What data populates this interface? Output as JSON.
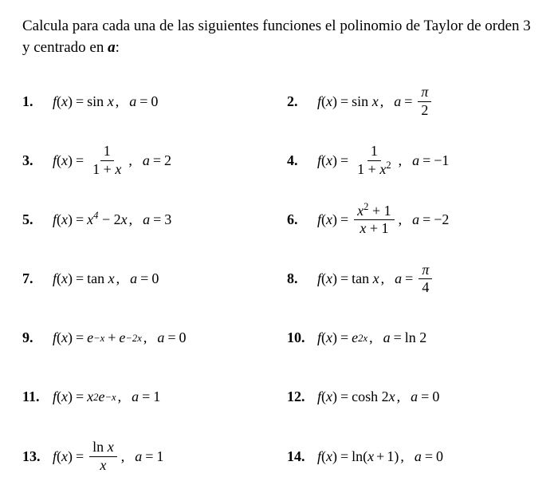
{
  "instruction": {
    "text_before": "Calcula para cada una de las siguientes funciones el polinomio de Taylor de orden 3 y centrado en ",
    "emph": "a",
    "text_after": ":"
  },
  "problems": [
    {
      "num": "1.",
      "func_html": "f(x) = sin x",
      "a_html": "a = 0",
      "func_type": "sin",
      "a_type": "plain",
      "a_val": "0"
    },
    {
      "num": "2.",
      "func_html": "f(x) = sin x",
      "a_html": "a = π/2",
      "func_type": "sin",
      "a_type": "frac",
      "a_top": "π",
      "a_bot": "2"
    },
    {
      "num": "3.",
      "func_type": "frac",
      "frac_top": "1",
      "frac_bot": "1 + x",
      "a_type": "plain",
      "a_val": "2"
    },
    {
      "num": "4.",
      "func_type": "frac",
      "frac_top": "1",
      "frac_bot": "1 + x²",
      "a_type": "plain",
      "a_val": "−1"
    },
    {
      "num": "5.",
      "func_type": "poly",
      "expr": "x⁴ − 2x",
      "a_type": "plain",
      "a_val": "3"
    },
    {
      "num": "6.",
      "func_type": "frac",
      "frac_top": "x² + 1",
      "frac_bot": "x + 1",
      "a_type": "plain",
      "a_val": "−2"
    },
    {
      "num": "7.",
      "func_type": "tan",
      "a_type": "plain",
      "a_val": "0"
    },
    {
      "num": "8.",
      "func_type": "tan",
      "a_type": "frac",
      "a_top": "π",
      "a_bot": "4"
    },
    {
      "num": "9.",
      "func_type": "expsum",
      "a_type": "plain",
      "a_val": "0"
    },
    {
      "num": "10.",
      "func_type": "exp2x",
      "a_type": "ln2"
    },
    {
      "num": "11.",
      "func_type": "x2ex",
      "a_type": "plain",
      "a_val": "1"
    },
    {
      "num": "12.",
      "func_type": "cosh",
      "a_type": "plain",
      "a_val": "0"
    },
    {
      "num": "13.",
      "func_type": "lnxoverx",
      "a_type": "plain",
      "a_val": "1"
    },
    {
      "num": "14.",
      "func_type": "lnxp1",
      "a_type": "plain",
      "a_val": "0"
    }
  ]
}
